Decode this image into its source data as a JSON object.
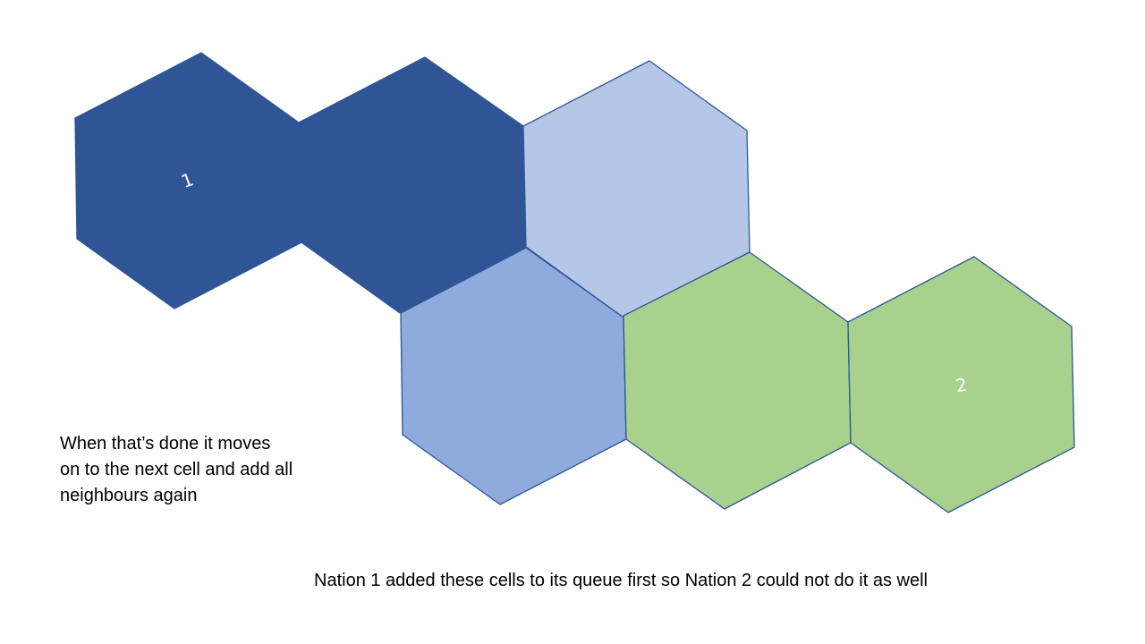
{
  "slide": {
    "caption_left": [
      "When that’s done it moves",
      "on to the next cell and add all",
      "neighbours again"
    ],
    "caption_bottom": "Nation 1 added these cells to its queue first so Nation 2 could not do it as well"
  },
  "cells": [
    {
      "id": "hex-nation1-origin",
      "state": "nation-1 owned (origin)",
      "fill": "#2f5597",
      "label": "1"
    },
    {
      "id": "hex-nation1-owned",
      "state": "nation-1 owned",
      "fill": "#2f5597",
      "label": ""
    },
    {
      "id": "hex-nation1-queued-upper",
      "state": "nation-1 queued",
      "fill": "#b4c7e7",
      "label": ""
    },
    {
      "id": "hex-nation1-queued-lower",
      "state": "nation-1 queued",
      "fill": "#8faadc",
      "label": ""
    },
    {
      "id": "hex-nation2-owned",
      "state": "nation-2 owned",
      "fill": "#a9d18e",
      "label": ""
    },
    {
      "id": "hex-nation2-origin",
      "state": "nation-2 owned (origin)",
      "fill": "#a9d18e",
      "label": "2"
    }
  ],
  "colors": {
    "stroke": "#2f5597"
  }
}
